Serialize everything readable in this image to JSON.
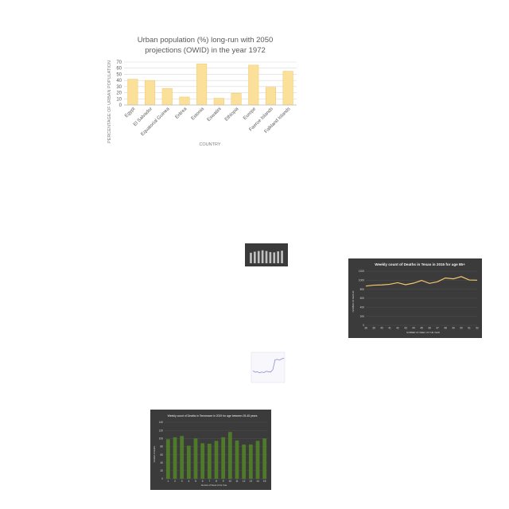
{
  "chart_data": [
    {
      "type": "bar",
      "title_lines": [
        "Urban population (%) long-run with 2050",
        "projections (OWID) in the year 1972"
      ],
      "xlabel": "COUNTRY",
      "ylabel": "PERCENTAGE OF URBAN POPULATION",
      "categories": [
        "Egypt",
        "El Salvador",
        "Equatorial Guinea",
        "Eritrea",
        "Estonia",
        "Eswatini",
        "Ethiopia",
        "Europe",
        "Faeroe Islands",
        "Falkland Islands"
      ],
      "values": [
        42,
        40,
        27,
        13,
        67,
        11,
        19,
        65,
        29,
        55
      ],
      "ylim": [
        0,
        70
      ],
      "yticks": [
        "0",
        "10",
        "20",
        "30",
        "40",
        "50",
        "60",
        "70"
      ],
      "grid": true,
      "color": "#fbe09a",
      "stroke": "#f3c76a"
    },
    {
      "type": "bar",
      "title": "",
      "values": [
        60,
        66,
        70,
        74,
        70,
        64,
        62,
        68,
        72
      ],
      "ylim": [
        0,
        100
      ],
      "color": "#bfbfbf"
    },
    {
      "type": "line",
      "title": "Weekly count of Deaths in Texas in 2015 for age 85+",
      "xlabel": "NUMBER OF WEEK OF THE YEAR",
      "ylabel": "NUMBER OF DEATHS",
      "categories": [
        "38",
        "39",
        "40",
        "41",
        "42",
        "43",
        "44",
        "45",
        "46",
        "47",
        "48",
        "49",
        "50",
        "51",
        "52"
      ],
      "values": [
        870,
        890,
        895,
        910,
        945,
        900,
        935,
        995,
        930,
        965,
        1050,
        1030,
        1080,
        1005,
        1000
      ],
      "ylim": [
        0,
        1200
      ],
      "yticks": [
        "0",
        "200",
        "400",
        "600",
        "800",
        "1000",
        "1200"
      ],
      "color": "#f5c66b"
    },
    {
      "type": "line",
      "title": "",
      "values": [
        38,
        32,
        34,
        30,
        33,
        31,
        36,
        34,
        33,
        42,
        78,
        80,
        77,
        82,
        84
      ],
      "ylim": [
        0,
        100
      ],
      "color": "#8a8fd9"
    },
    {
      "type": "bar",
      "title": "Weekly count of Deaths in Tennessee in 2019 for age between 25-45 years",
      "xlabel": "Number of Week of the Year",
      "ylabel": "Number of deaths",
      "categories": [
        "1",
        "2",
        "3",
        "4",
        "5",
        "6",
        "7",
        "8",
        "9",
        "10",
        "11",
        "12",
        "13",
        "14",
        "15"
      ],
      "values": [
        98,
        103,
        106,
        82,
        100,
        88,
        87,
        94,
        103,
        116,
        95,
        85,
        85,
        94,
        100
      ],
      "ylim": [
        0,
        140
      ],
      "yticks": [
        "0",
        "20",
        "40",
        "60",
        "80",
        "100",
        "120",
        "140"
      ],
      "color": "#4f7a2a"
    }
  ]
}
